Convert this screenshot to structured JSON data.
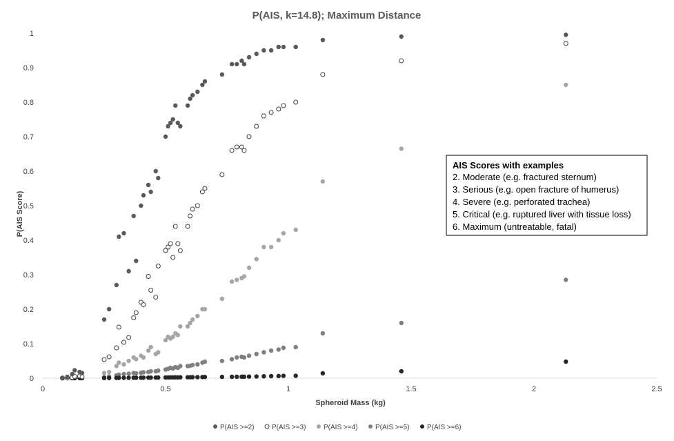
{
  "chart_data": {
    "type": "scatter",
    "title": "P(AIS, k=14.8); Maximum Distance",
    "xlabel": "Spheroid Mass (kg)",
    "ylabel": "P(AIS Score)",
    "xlim": [
      0,
      2.5
    ],
    "ylim": [
      0,
      1
    ],
    "xticks": [
      0,
      0.5,
      1,
      1.5,
      2,
      2.5
    ],
    "xtick_labels": [
      "0",
      "0.5",
      "1",
      "1.5",
      "2",
      "2.5"
    ],
    "yticks": [
      0,
      0.1,
      0.2,
      0.3,
      0.4,
      0.5,
      0.6,
      0.7,
      0.8,
      0.9,
      1
    ],
    "ytick_labels": [
      "0",
      "0.1",
      "0.2",
      "0.3",
      "0.4",
      "0.5",
      "0.6",
      "0.7",
      "0.8",
      "0.9",
      "1"
    ],
    "grid": false,
    "legend_position": "bottom",
    "x": [
      0.08,
      0.1,
      0.12,
      0.13,
      0.15,
      0.16,
      0.25,
      0.27,
      0.3,
      0.31,
      0.33,
      0.35,
      0.37,
      0.38,
      0.4,
      0.41,
      0.43,
      0.44,
      0.46,
      0.47,
      0.5,
      0.51,
      0.52,
      0.53,
      0.54,
      0.55,
      0.56,
      0.59,
      0.6,
      0.61,
      0.63,
      0.65,
      0.66,
      0.73,
      0.77,
      0.79,
      0.81,
      0.82,
      0.84,
      0.87,
      0.9,
      0.93,
      0.96,
      0.98,
      1.03,
      1.14,
      1.46,
      2.13
    ],
    "series": [
      {
        "name": "P(AIS >=2)",
        "color": "#595959",
        "marker": "filled",
        "values": [
          0.001,
          0.004,
          0.012,
          0.023,
          0.018,
          0.015,
          0.17,
          0.2,
          0.27,
          0.41,
          0.42,
          0.31,
          0.47,
          0.34,
          0.5,
          0.53,
          0.56,
          0.54,
          0.6,
          0.58,
          0.7,
          0.73,
          0.74,
          0.75,
          0.79,
          0.74,
          0.73,
          0.79,
          0.81,
          0.82,
          0.83,
          0.85,
          0.86,
          0.88,
          0.91,
          0.91,
          0.92,
          0.91,
          0.93,
          0.94,
          0.95,
          0.95,
          0.96,
          0.96,
          0.96,
          0.98,
          0.99,
          0.995
        ]
      },
      {
        "name": "P(AIS >=3)",
        "color": "#404040",
        "marker": "open",
        "values": [
          0.0005,
          0.001,
          0.002,
          0.005,
          0.006,
          0.004,
          0.054,
          0.062,
          0.088,
          0.148,
          0.104,
          0.118,
          0.175,
          0.19,
          0.22,
          0.213,
          0.295,
          0.255,
          0.235,
          0.325,
          0.37,
          0.38,
          0.39,
          0.35,
          0.44,
          0.39,
          0.37,
          0.44,
          0.47,
          0.49,
          0.5,
          0.54,
          0.55,
          0.59,
          0.66,
          0.67,
          0.67,
          0.66,
          0.7,
          0.73,
          0.76,
          0.77,
          0.78,
          0.79,
          0.8,
          0.88,
          0.92,
          0.97
        ]
      },
      {
        "name": "P(AIS >=4)",
        "color": "#a6a6a6",
        "marker": "filled",
        "values": [
          0.0002,
          0.0004,
          0.0008,
          0.001,
          0.002,
          0.001,
          0.015,
          0.018,
          0.035,
          0.045,
          0.04,
          0.05,
          0.06,
          0.055,
          0.065,
          0.06,
          0.08,
          0.09,
          0.07,
          0.075,
          0.11,
          0.12,
          0.115,
          0.12,
          0.13,
          0.125,
          0.15,
          0.15,
          0.16,
          0.17,
          0.18,
          0.2,
          0.2,
          0.23,
          0.28,
          0.285,
          0.29,
          0.295,
          0.32,
          0.345,
          0.38,
          0.38,
          0.4,
          0.42,
          0.43,
          0.57,
          0.665,
          0.85
        ]
      },
      {
        "name": "P(AIS >=5)",
        "color": "#7f7f7f",
        "marker": "filled",
        "values": [
          0.0001,
          0.0002,
          0.0003,
          0.0005,
          0.0006,
          0.0005,
          0.003,
          0.005,
          0.008,
          0.01,
          0.012,
          0.013,
          0.015,
          0.014,
          0.016,
          0.017,
          0.018,
          0.02,
          0.02,
          0.022,
          0.025,
          0.027,
          0.03,
          0.028,
          0.032,
          0.03,
          0.035,
          0.035,
          0.036,
          0.038,
          0.04,
          0.045,
          0.048,
          0.05,
          0.055,
          0.06,
          0.062,
          0.06,
          0.065,
          0.07,
          0.075,
          0.08,
          0.083,
          0.088,
          0.09,
          0.13,
          0.16,
          0.285
        ]
      },
      {
        "name": "P(AIS >=6)",
        "color": "#262626",
        "marker": "filled",
        "values": [
          0,
          0,
          0.0001,
          0.0001,
          0.0002,
          0.0001,
          0.0004,
          0.0005,
          0.0008,
          0.001,
          0.001,
          0.0012,
          0.0013,
          0.0013,
          0.0015,
          0.0015,
          0.0016,
          0.0017,
          0.0018,
          0.002,
          0.0021,
          0.0022,
          0.0024,
          0.0023,
          0.0025,
          0.0024,
          0.0026,
          0.0027,
          0.0028,
          0.003,
          0.003,
          0.0033,
          0.0035,
          0.0038,
          0.004,
          0.0042,
          0.0044,
          0.0043,
          0.0046,
          0.005,
          0.0055,
          0.006,
          0.0063,
          0.0068,
          0.007,
          0.014,
          0.02,
          0.048
        ]
      }
    ],
    "annotation": {
      "title": "AIS Scores with examples",
      "lines": [
        "2. Moderate (e.g. fractured sternum)",
        "3. Serious (e.g. open fracture of humerus)",
        "4. Severe (e.g. perforated trachea)",
        "5. Critical (e.g. ruptured liver with tissue loss)",
        "6. Maximum (untreatable, fatal)"
      ]
    }
  }
}
